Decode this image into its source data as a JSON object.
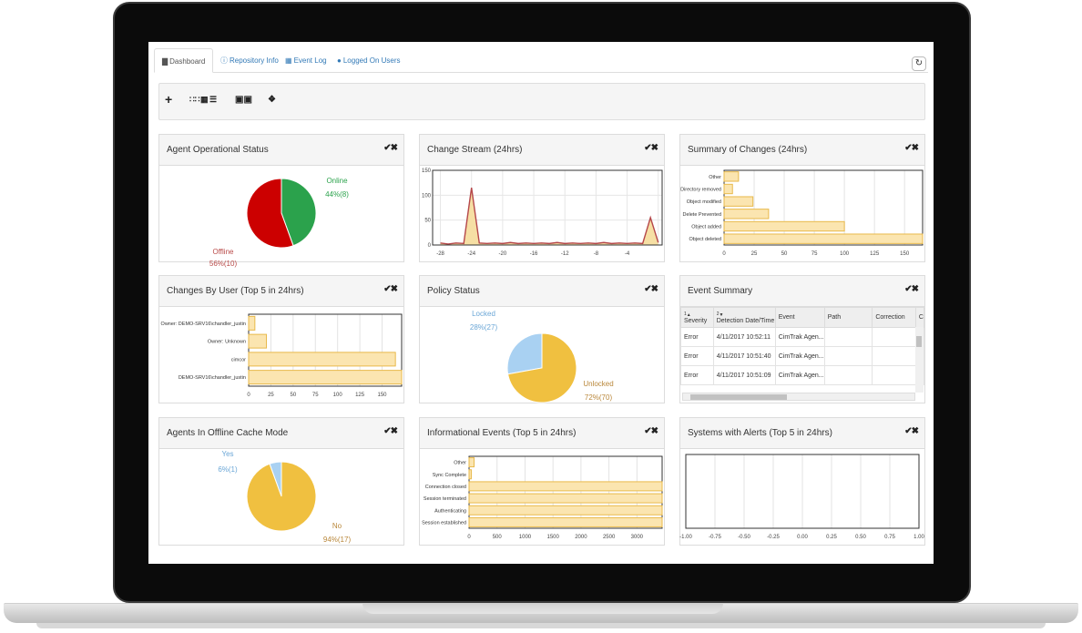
{
  "tabs": [
    {
      "label": "Dashboard",
      "icon": "bar-chart-icon",
      "active": true
    },
    {
      "label": "Repository Info",
      "icon": "info-icon",
      "active": false
    },
    {
      "label": "Event Log",
      "icon": "calendar-icon",
      "active": false
    },
    {
      "label": "Logged On Users",
      "icon": "user-icon",
      "active": false
    }
  ],
  "toolbar": {
    "add": "+",
    "layout_icons": [
      "grid-small-icon",
      "grid-large-icon",
      "list-icon"
    ],
    "toggle_icon": "toggle-icon",
    "tag_icon": "tag-icon"
  },
  "panel_controls": "✔✖",
  "panels": {
    "agent_status": {
      "title": "Agent Operational Status"
    },
    "change_stream": {
      "title": "Change Stream (24hrs)"
    },
    "summary_changes": {
      "title": "Summary of Changes (24hrs)"
    },
    "changes_by_user": {
      "title": "Changes By User (Top 5 in 24hrs)"
    },
    "policy_status": {
      "title": "Policy Status"
    },
    "event_summary": {
      "title": "Event Summary"
    },
    "offline_cache": {
      "title": "Agents In Offline Cache Mode"
    },
    "info_events": {
      "title": "Informational Events (Top 5 in 24hrs)"
    },
    "systems_alerts": {
      "title": "Systems with Alerts (Top 5 in 24hrs)"
    }
  },
  "event_table": {
    "columns": [
      "Severity",
      "Detection Date/Time",
      "Event",
      "Path",
      "Correction",
      "C"
    ],
    "sort_markers": [
      "1",
      "2"
    ],
    "rows": [
      [
        "Error",
        "4/11/2017 10:52:11",
        "CimTrak Agen...",
        "",
        ""
      ],
      [
        "Error",
        "4/11/2017 10:51:40",
        "CimTrak Agen...",
        "",
        ""
      ],
      [
        "Error",
        "4/11/2017 10:51:09",
        "CimTrak Agen...",
        "",
        ""
      ]
    ]
  },
  "colors": {
    "online": "#2ba24c",
    "offline": "#cc0000",
    "locked": "#a9d1f2",
    "unlocked": "#f0c040",
    "bar_fill": "#fbe5b0",
    "bar_stroke": "#e8b94a",
    "line": "#b5474a"
  },
  "chart_data": [
    {
      "id": "agent_status",
      "type": "pie",
      "slices": [
        {
          "label": "Online",
          "value": 8,
          "text": "44%(8)",
          "color": "#2ba24c"
        },
        {
          "label": "Offline",
          "value": 10,
          "text": "56%(10)",
          "color": "#cc0000"
        }
      ]
    },
    {
      "id": "change_stream",
      "type": "area",
      "x": [
        -28,
        -27,
        -26,
        -25,
        -24,
        -23,
        -22,
        -21,
        -20,
        -19,
        -18,
        -17,
        -16,
        -15,
        -14,
        -13,
        -12,
        -11,
        -10,
        -9,
        -8,
        -7,
        -6,
        -5,
        -4,
        -3,
        -2,
        -1,
        0
      ],
      "values": [
        4,
        2,
        4,
        3,
        115,
        4,
        3,
        4,
        3,
        5,
        3,
        4,
        3,
        4,
        3,
        5,
        3,
        4,
        3,
        4,
        3,
        5,
        3,
        4,
        3,
        4,
        3,
        55,
        5
      ],
      "xlim": [
        -29,
        0.5
      ],
      "ylim": [
        0,
        150
      ],
      "xticks": [
        -28,
        -24,
        -20,
        -16,
        -12,
        -8,
        -4,
        0
      ],
      "xtick_labels": [
        "-28",
        "-24",
        "-20",
        "-16",
        "-12",
        "-8",
        "-4",
        ""
      ],
      "yticks": [
        0,
        50,
        100,
        150
      ]
    },
    {
      "id": "summary_changes",
      "type": "bar",
      "orientation": "horizontal",
      "categories": [
        "Other",
        "Directory removed",
        "Object modified",
        "Delete Prevented",
        "Object added",
        "Object deleted"
      ],
      "values": [
        12,
        7,
        24,
        37,
        100,
        165
      ],
      "xlim": [
        0,
        165
      ],
      "xticks": [
        0,
        25,
        50,
        75,
        100,
        125,
        150
      ]
    },
    {
      "id": "changes_by_user",
      "type": "bar",
      "orientation": "horizontal",
      "categories": [
        "Owner: DEMO-SRV16\\chandler_justin",
        "Owner: Unknown",
        "cimcor",
        "DEMO-SRV16\\chandler_justin"
      ],
      "values": [
        7,
        20,
        165,
        172
      ],
      "xlim": [
        0,
        172
      ],
      "xticks": [
        0,
        25,
        50,
        75,
        100,
        125,
        150
      ]
    },
    {
      "id": "policy_status",
      "type": "pie",
      "slices": [
        {
          "label": "Locked",
          "value": 27,
          "text": "28%(27)",
          "color": "#a9d1f2"
        },
        {
          "label": "Unlocked",
          "value": 70,
          "text": "72%(70)",
          "color": "#f0c040"
        }
      ]
    },
    {
      "id": "offline_cache",
      "type": "pie",
      "slices": [
        {
          "label": "Yes",
          "value": 1,
          "text": "6%(1)",
          "color": "#a9d1f2"
        },
        {
          "label": "No",
          "value": 17,
          "text": "94%(17)",
          "color": "#f0c040"
        }
      ]
    },
    {
      "id": "info_events",
      "type": "bar",
      "orientation": "horizontal",
      "categories": [
        "Other",
        "Sync Complete",
        "Connection closed",
        "Session terminated",
        "Authenticating",
        "Session established"
      ],
      "values": [
        90,
        40,
        3450,
        3450,
        3450,
        3450
      ],
      "xlim": [
        0,
        3450
      ],
      "xticks": [
        0,
        500,
        1000,
        1500,
        2000,
        2500,
        3000
      ]
    },
    {
      "id": "systems_alerts",
      "type": "bar",
      "orientation": "horizontal",
      "categories": [],
      "values": [],
      "xlim": [
        -1,
        1
      ],
      "xticks": [
        -1,
        -0.75,
        -0.5,
        -0.25,
        0,
        0.25,
        0.5,
        0.75,
        1
      ],
      "xtick_labels": [
        "-1.00",
        "-0.75",
        "-0.50",
        "-0.25",
        "0.00",
        "0.25",
        "0.50",
        "0.75",
        "1.00"
      ]
    }
  ]
}
